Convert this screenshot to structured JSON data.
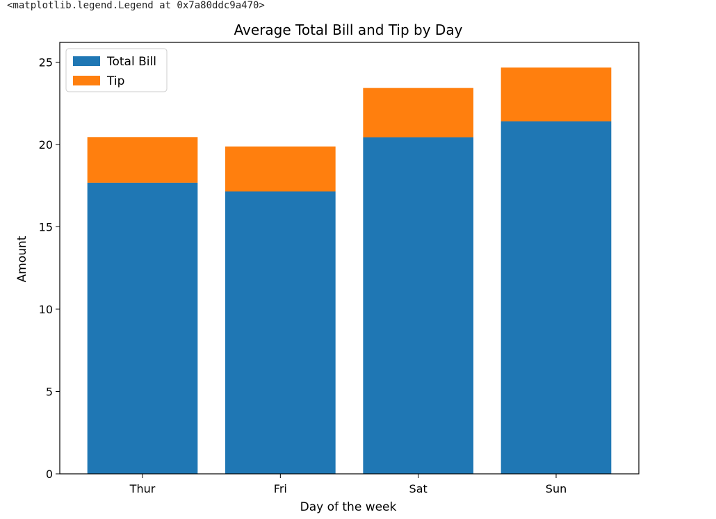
{
  "output_repr": "<matplotlib.legend.Legend at 0x7a80ddc9a470>",
  "chart_data": {
    "type": "bar",
    "stacked": true,
    "title": "Average Total Bill and Tip by Day",
    "xlabel": "Day of the week",
    "ylabel": "Amount",
    "categories": [
      "Thur",
      "Fri",
      "Sat",
      "Sun"
    ],
    "series": [
      {
        "name": "Total Bill",
        "color": "#1f77b4",
        "values": [
          17.68,
          17.15,
          20.44,
          21.41
        ]
      },
      {
        "name": "Tip",
        "color": "#ff7f0e",
        "values": [
          2.77,
          2.73,
          2.99,
          3.26
        ]
      }
    ],
    "ylim": [
      0,
      26.2
    ],
    "yticks": [
      "0",
      "5",
      "10",
      "15",
      "20",
      "25"
    ],
    "legend": "top-left",
    "grid": false
  }
}
